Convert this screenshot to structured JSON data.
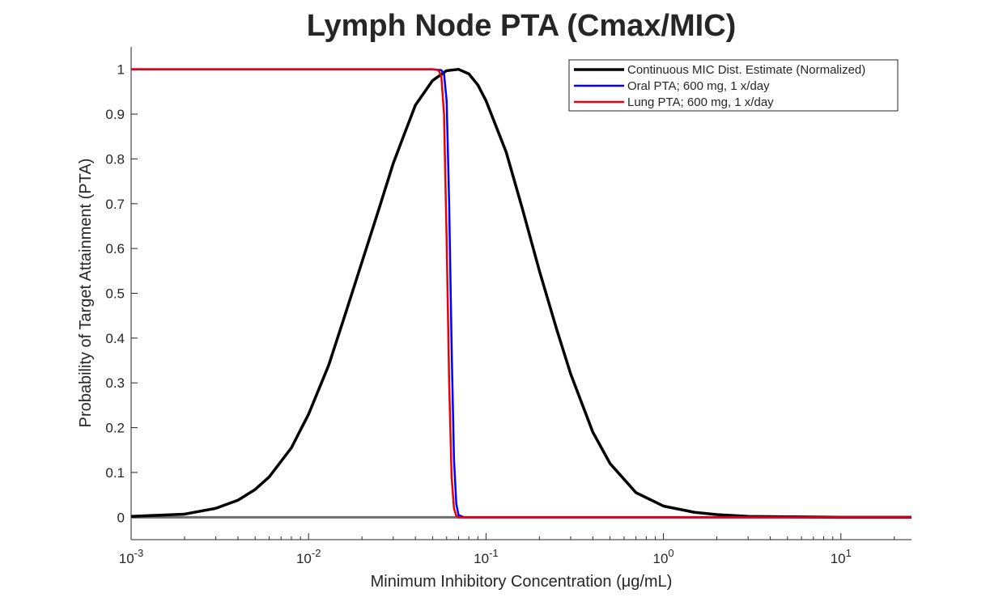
{
  "chart_data": {
    "type": "line",
    "title": "Lymph Node PTA (Cmax/MIC)",
    "xlabel": "Minimum  Inhibitory  Concentration  (μg/mL)",
    "ylabel": "Probability of Target Attainment (PTA)",
    "xscale": "log",
    "xlim": [
      0.001,
      25
    ],
    "ylim": [
      -0.05,
      1.05
    ],
    "x_ticks": [
      {
        "base": "10",
        "exp": "-3",
        "value": 0.001
      },
      {
        "base": "10",
        "exp": "-2",
        "value": 0.01
      },
      {
        "base": "10",
        "exp": "-1",
        "value": 0.1
      },
      {
        "base": "10",
        "exp": "0",
        "value": 1
      },
      {
        "base": "10",
        "exp": "1",
        "value": 10
      }
    ],
    "y_ticks": [
      "0",
      "0.1",
      "0.2",
      "0.3",
      "0.4",
      "0.5",
      "0.6",
      "0.7",
      "0.8",
      "0.9",
      "1"
    ],
    "grid": false,
    "legend_position": "top-right",
    "series": [
      {
        "name": "Continuous MIC Dist. Estimate (Normalized)",
        "color": "#000000",
        "x": [
          0.001,
          0.002,
          0.003,
          0.004,
          0.005,
          0.006,
          0.008,
          0.01,
          0.013,
          0.016,
          0.02,
          0.025,
          0.03,
          0.035,
          0.04,
          0.05,
          0.06,
          0.07,
          0.08,
          0.09,
          0.1,
          0.13,
          0.16,
          0.2,
          0.25,
          0.3,
          0.4,
          0.5,
          0.7,
          1.0,
          1.5,
          2.0,
          3.0,
          5.0,
          10.0,
          25.0
        ],
        "y": [
          0.002,
          0.007,
          0.02,
          0.038,
          0.062,
          0.09,
          0.155,
          0.23,
          0.34,
          0.45,
          0.57,
          0.69,
          0.79,
          0.86,
          0.92,
          0.975,
          0.997,
          1.0,
          0.99,
          0.965,
          0.93,
          0.815,
          0.69,
          0.55,
          0.42,
          0.32,
          0.19,
          0.12,
          0.055,
          0.025,
          0.011,
          0.006,
          0.002,
          0.001,
          0.0,
          0.0
        ]
      },
      {
        "name": "Oral PTA; 600 mg, 1 x/day",
        "color": "#0000ff",
        "x": [
          0.001,
          0.05,
          0.056,
          0.058,
          0.06,
          0.062,
          0.064,
          0.066,
          0.068,
          0.07,
          0.075,
          0.1,
          1.0,
          25.0
        ],
        "y": [
          1.0,
          1.0,
          0.998,
          0.99,
          0.93,
          0.7,
          0.38,
          0.13,
          0.03,
          0.005,
          0.0,
          0.0,
          0.0,
          0.0
        ]
      },
      {
        "name": "Lung PTA; 600 mg, 1 x/day",
        "color": "#e8000b",
        "x": [
          0.001,
          0.05,
          0.054,
          0.056,
          0.058,
          0.06,
          0.062,
          0.064,
          0.066,
          0.068,
          0.07,
          0.1,
          1.0,
          25.0
        ],
        "y": [
          1.0,
          1.0,
          0.998,
          0.985,
          0.9,
          0.62,
          0.3,
          0.09,
          0.02,
          0.003,
          0.0,
          0.0,
          0.0,
          0.0
        ]
      }
    ]
  }
}
